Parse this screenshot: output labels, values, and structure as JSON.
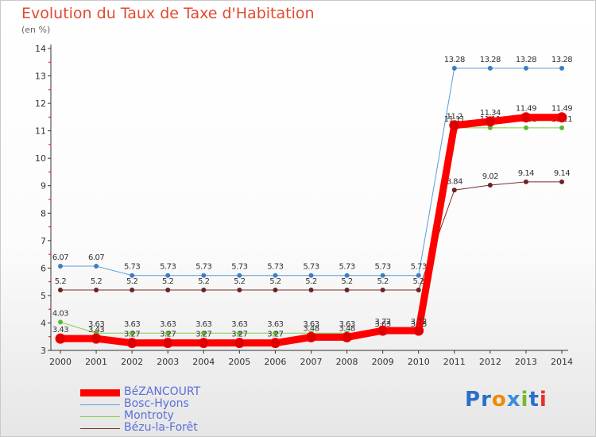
{
  "chart_data": {
    "type": "line",
    "title": "Evolution du Taux de Taxe d'Habitation",
    "subtitle": "(en %)",
    "x": [
      2000,
      2001,
      2002,
      2003,
      2004,
      2005,
      2006,
      2007,
      2008,
      2009,
      2010,
      2011,
      2012,
      2013,
      2014
    ],
    "x_tick_labels": [
      "2000",
      "2001",
      "2002",
      "2003",
      "2004",
      "2005",
      "2006",
      "2007",
      "2008",
      "2009",
      "2010",
      "2011",
      "2012",
      "2013",
      "2014"
    ],
    "ylim": [
      3,
      14
    ],
    "y_ticks": [
      3,
      4,
      5,
      6,
      7,
      8,
      9,
      10,
      11,
      12,
      13,
      14
    ],
    "grid": false,
    "legend_position": "bottom-left",
    "series": [
      {
        "name": "Bosc-Hyons",
        "color": "#5b9bd5",
        "marker_color": "#3a7fc6",
        "width": 1,
        "values": [
          6.07,
          6.07,
          5.73,
          5.73,
          5.73,
          5.73,
          5.73,
          5.73,
          5.73,
          5.73,
          5.73,
          13.28,
          13.28,
          13.28,
          13.28
        ],
        "labels": [
          "6.07",
          "6.07",
          "5.73",
          "5.73",
          "5.73",
          "5.73",
          "5.73",
          "5.73",
          "5.73",
          "5.73",
          "5.73",
          "13.28",
          "13.28",
          "13.28",
          "13.28"
        ]
      },
      {
        "name": "Bézu-la-Forêt",
        "color": "#7a2c2c",
        "marker_color": "#6b2222",
        "width": 1,
        "values": [
          5.2,
          5.2,
          5.2,
          5.2,
          5.2,
          5.2,
          5.2,
          5.2,
          5.2,
          5.2,
          5.2,
          8.84,
          9.02,
          9.14,
          9.14
        ],
        "labels": [
          "5.2",
          "5.2",
          "5.2",
          "5.2",
          "5.2",
          "5.2",
          "5.2",
          "5.2",
          "5.2",
          "5.2",
          "5.2",
          "8.84",
          "9.02",
          "9.14",
          "9.14"
        ]
      },
      {
        "name": "Montroty",
        "color": "#7ad04a",
        "marker_color": "#5cb830",
        "width": 1,
        "values": [
          4.03,
          3.63,
          3.63,
          3.63,
          3.63,
          3.63,
          3.63,
          3.63,
          3.63,
          3.63,
          3.63,
          11.11,
          11.11,
          11.11,
          11.11
        ],
        "labels": [
          "4.03",
          "3.63",
          "3.63",
          "3.63",
          "3.63",
          "3.63",
          "3.63",
          "3.63",
          "3.63",
          "3.63",
          "3.63",
          "11.11",
          "11.11",
          "11.11",
          "11.11"
        ]
      },
      {
        "name": "BéZANCOURT",
        "color": "#ff0000",
        "marker_color": "#dd0000",
        "width": 9,
        "values": [
          3.43,
          3.43,
          3.27,
          3.27,
          3.27,
          3.27,
          3.27,
          3.48,
          3.48,
          3.72,
          3.72,
          11.2,
          11.34,
          11.49,
          11.49
        ],
        "labels": [
          "3.43",
          "3.43",
          "3.27",
          "3.27",
          "3.27",
          "3.27",
          "3.27",
          "3.48",
          "3.48",
          "3.72",
          "3.72",
          "11.2",
          "11.34",
          "11.49",
          "11.49"
        ]
      }
    ],
    "legend": [
      "BéZANCOURT",
      "Bosc-Hyons",
      "Montroty",
      "Bézu-la-Forêt"
    ]
  },
  "legend_items": [
    {
      "label": "BéZANCOURT",
      "color": "#ff0000",
      "width": 9
    },
    {
      "label": "Bosc-Hyons",
      "color": "#5b9bd5",
      "width": 1
    },
    {
      "label": "Montroty",
      "color": "#7ad04a",
      "width": 1
    },
    {
      "label": "Bézu-la-Forêt",
      "color": "#7a2c2c",
      "width": 1
    }
  ],
  "logo": {
    "letters": [
      "P",
      "r",
      "o",
      "x",
      "i",
      "t",
      "i"
    ],
    "colors": [
      "#2a6fc8",
      "#2a6fc8",
      "#f08a00",
      "#3a8fd8",
      "#7ab830",
      "#2a6fc8",
      "#e8312a"
    ]
  }
}
